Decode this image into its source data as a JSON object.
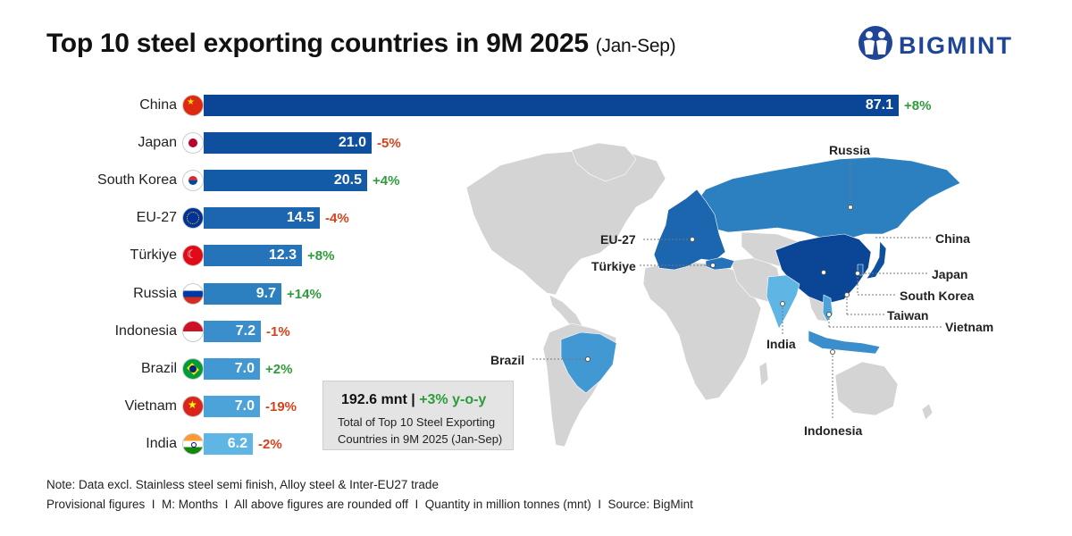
{
  "header": {
    "title": "Top 10 steel exporting countries in 9M 2025",
    "title_suffix": "(Jan-Sep)",
    "logo_text": "BIGMINT"
  },
  "chart_data": {
    "type": "bar",
    "orientation": "horizontal",
    "title": "Top 10 steel exporting countries in 9M 2025 (Jan-Sep)",
    "unit": "million tonnes (mnt)",
    "categories": [
      "China",
      "Japan",
      "South Korea",
      "EU-27",
      "Türkiye",
      "Russia",
      "Indonesia",
      "Brazil",
      "Vietnam",
      "India"
    ],
    "values": [
      87.1,
      21.0,
      20.5,
      14.5,
      12.3,
      9.7,
      7.2,
      7.0,
      7.0,
      6.2
    ],
    "value_labels": [
      "87.1",
      "21.0",
      "20.5",
      "14.5",
      "12.3",
      "9.7",
      "7.2",
      "7.0",
      "7.0",
      "6.2"
    ],
    "changes": [
      "+8%",
      "-5%",
      "+4%",
      "-4%",
      "+8%",
      "+14%",
      "-1%",
      "+2%",
      "-19%",
      "-2%"
    ],
    "bar_colors": [
      "#0a4596",
      "#0e4f9e",
      "#135aa7",
      "#1c66b0",
      "#2573b9",
      "#2d80c0",
      "#3a8ecb",
      "#4198d3",
      "#4ba3d9",
      "#5fb6e4"
    ],
    "positive_color": "#2e9c3a",
    "negative_color": "#d4421c"
  },
  "summary": {
    "total": "192.6 mnt",
    "separator": " | ",
    "growth": "+3% y-o-y",
    "line1": "Total of Top 10 Steel Exporting",
    "line2": "Countries in 9M 2025 (Jan-Sep)"
  },
  "map_labels": {
    "russia": "Russia",
    "eu27": "EU-27",
    "turkiye": "Türkiye",
    "china": "China",
    "japan": "Japan",
    "south_korea": "South Korea",
    "taiwan": "Taiwan",
    "vietnam": "Vietnam",
    "india": "India",
    "brazil": "Brazil",
    "indonesia": "Indonesia"
  },
  "notes": {
    "line1": "Note: Data excl. Stainless steel semi finish, Alloy steel & Inter-EU27 trade",
    "line2": "Provisional figures  I  M: Months  I  All above figures are rounded off  I  Quantity in million tonnes (mnt)  I  Source: BigMint"
  }
}
